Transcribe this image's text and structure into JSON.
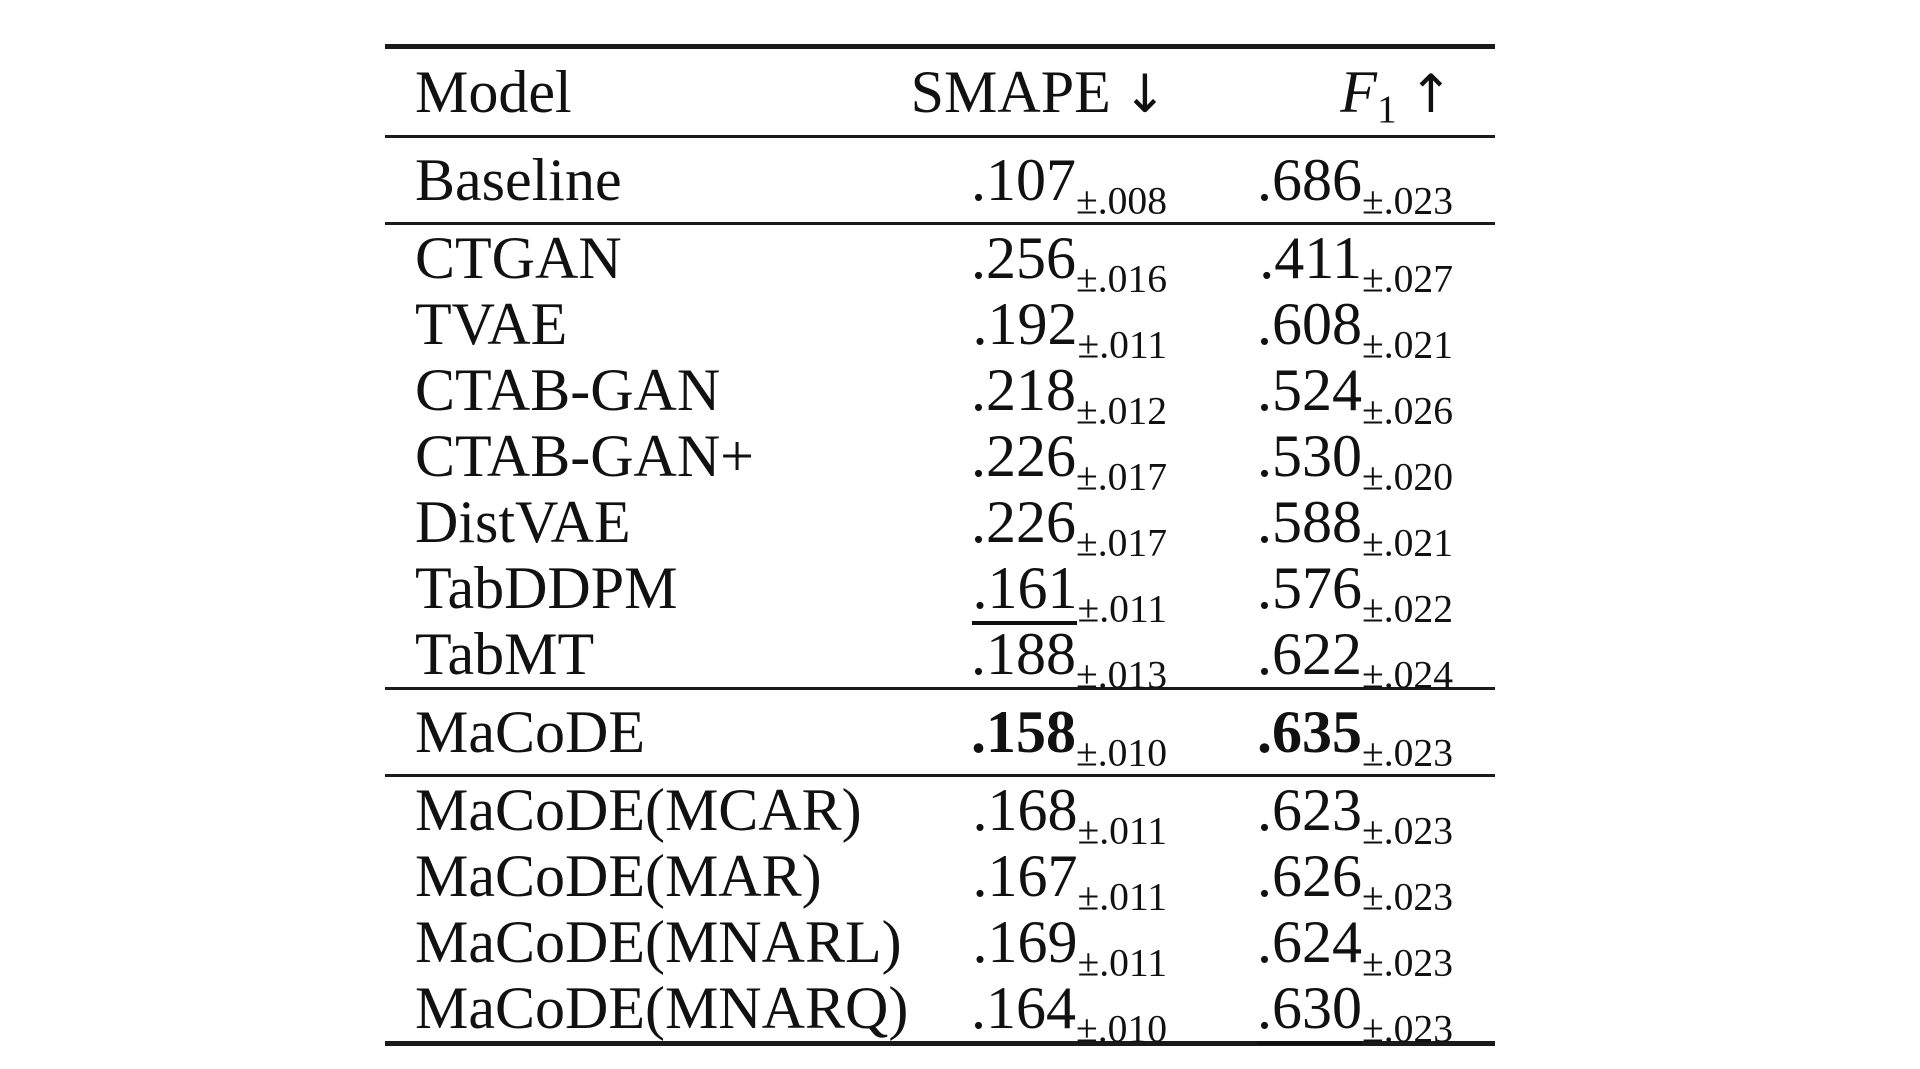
{
  "page": {
    "background": "#ffffff",
    "text_color": "#111111",
    "rule_color": "#1a1a1a"
  },
  "table": {
    "headers": {
      "model": "Model",
      "smape": {
        "label": "SMAPE",
        "arrow": "↓"
      },
      "f1": {
        "label": "F",
        "subscript": "1",
        "arrow": "↑"
      }
    },
    "sections": [
      {
        "name": "baseline",
        "rows": [
          {
            "model": "Baseline",
            "smape": {
              "value": ".107",
              "error": "±.008"
            },
            "f1": {
              "value": ".686",
              "error": "±.023"
            }
          }
        ]
      },
      {
        "name": "competitors",
        "rows": [
          {
            "model": "CTGAN",
            "smape": {
              "value": ".256",
              "error": "±.016"
            },
            "f1": {
              "value": ".411",
              "error": "±.027"
            }
          },
          {
            "model": "TVAE",
            "smape": {
              "value": ".192",
              "error": "±.011"
            },
            "f1": {
              "value": ".608",
              "error": "±.021"
            }
          },
          {
            "model": "CTAB-GAN",
            "smape": {
              "value": ".218",
              "error": "±.012"
            },
            "f1": {
              "value": ".524",
              "error": "±.026"
            }
          },
          {
            "model": "CTAB-GAN+",
            "smape": {
              "value": ".226",
              "error": "±.017"
            },
            "f1": {
              "value": ".530",
              "error": "±.020"
            }
          },
          {
            "model": "DistVAE",
            "smape": {
              "value": ".226",
              "error": "±.017"
            },
            "f1": {
              "value": ".588",
              "error": "±.021"
            }
          },
          {
            "model": "TabDDPM",
            "smape": {
              "value": ".161",
              "error": "±.011",
              "underline": true
            },
            "f1": {
              "value": ".576",
              "error": "±.022"
            }
          },
          {
            "model": "TabMT",
            "smape": {
              "value": ".188",
              "error": "±.013"
            },
            "f1": {
              "value": ".622",
              "error": "±.024"
            }
          }
        ]
      },
      {
        "name": "macode",
        "rows": [
          {
            "model": "MaCoDE",
            "smape": {
              "value": ".158",
              "error": "±.010",
              "bold": true
            },
            "f1": {
              "value": ".635",
              "error": "±.023",
              "bold": true
            }
          }
        ]
      },
      {
        "name": "macode-variants",
        "rows": [
          {
            "model": "MaCoDE(MCAR)",
            "smape": {
              "value": ".168",
              "error": "±.011"
            },
            "f1": {
              "value": ".623",
              "error": "±.023"
            }
          },
          {
            "model": "MaCoDE(MAR)",
            "smape": {
              "value": ".167",
              "error": "±.011"
            },
            "f1": {
              "value": ".626",
              "error": "±.023"
            }
          },
          {
            "model": "MaCoDE(MNARL)",
            "smape": {
              "value": ".169",
              "error": "±.011"
            },
            "f1": {
              "value": ".624",
              "error": "±.023"
            }
          },
          {
            "model": "MaCoDE(MNARQ)",
            "smape": {
              "value": ".164",
              "error": "±.010"
            },
            "f1": {
              "value": ".630",
              "error": "±.023",
              "underline": true
            }
          }
        ]
      }
    ]
  }
}
